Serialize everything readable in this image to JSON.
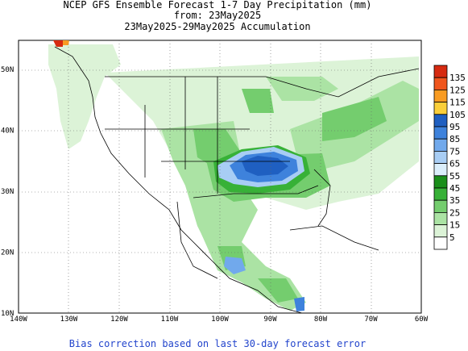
{
  "header": {
    "line1": "NCEP GFS Ensemble Forecast 1-7 Day Precipitation (mm)",
    "line2": "from: 23May2025",
    "line3": "23May2025-29May2025 Accumulation"
  },
  "footer": {
    "note": "Bias correction based on last 30-day forecast error"
  },
  "axes": {
    "lon_labels": [
      "140W",
      "130W",
      "120W",
      "110W",
      "100W",
      "90W",
      "80W",
      "70W",
      "60W"
    ],
    "lat_labels": [
      "10N",
      "20N",
      "30N",
      "40N",
      "50N"
    ]
  },
  "legend": {
    "levels": [
      {
        "label": "135",
        "color": "#d62a10"
      },
      {
        "label": "125",
        "color": "#f0561d"
      },
      {
        "label": "115",
        "color": "#f99c22"
      },
      {
        "label": "105",
        "color": "#fbcf3a"
      },
      {
        "label": "95",
        "color": "#1f5fc1"
      },
      {
        "label": "85",
        "color": "#3e82dc"
      },
      {
        "label": "75",
        "color": "#71a9ec"
      },
      {
        "label": "65",
        "color": "#a8cdf4"
      },
      {
        "label": "55",
        "color": "#dbeefb"
      },
      {
        "label": "45",
        "color": "#1a8f1a"
      },
      {
        "label": "35",
        "color": "#37b137"
      },
      {
        "label": "25",
        "color": "#74cd6e"
      },
      {
        "label": "15",
        "color": "#abe3a4"
      },
      {
        "label": "5",
        "color": "#dcf3d7"
      },
      {
        "label": "",
        "color": "#ffffff"
      }
    ]
  }
}
